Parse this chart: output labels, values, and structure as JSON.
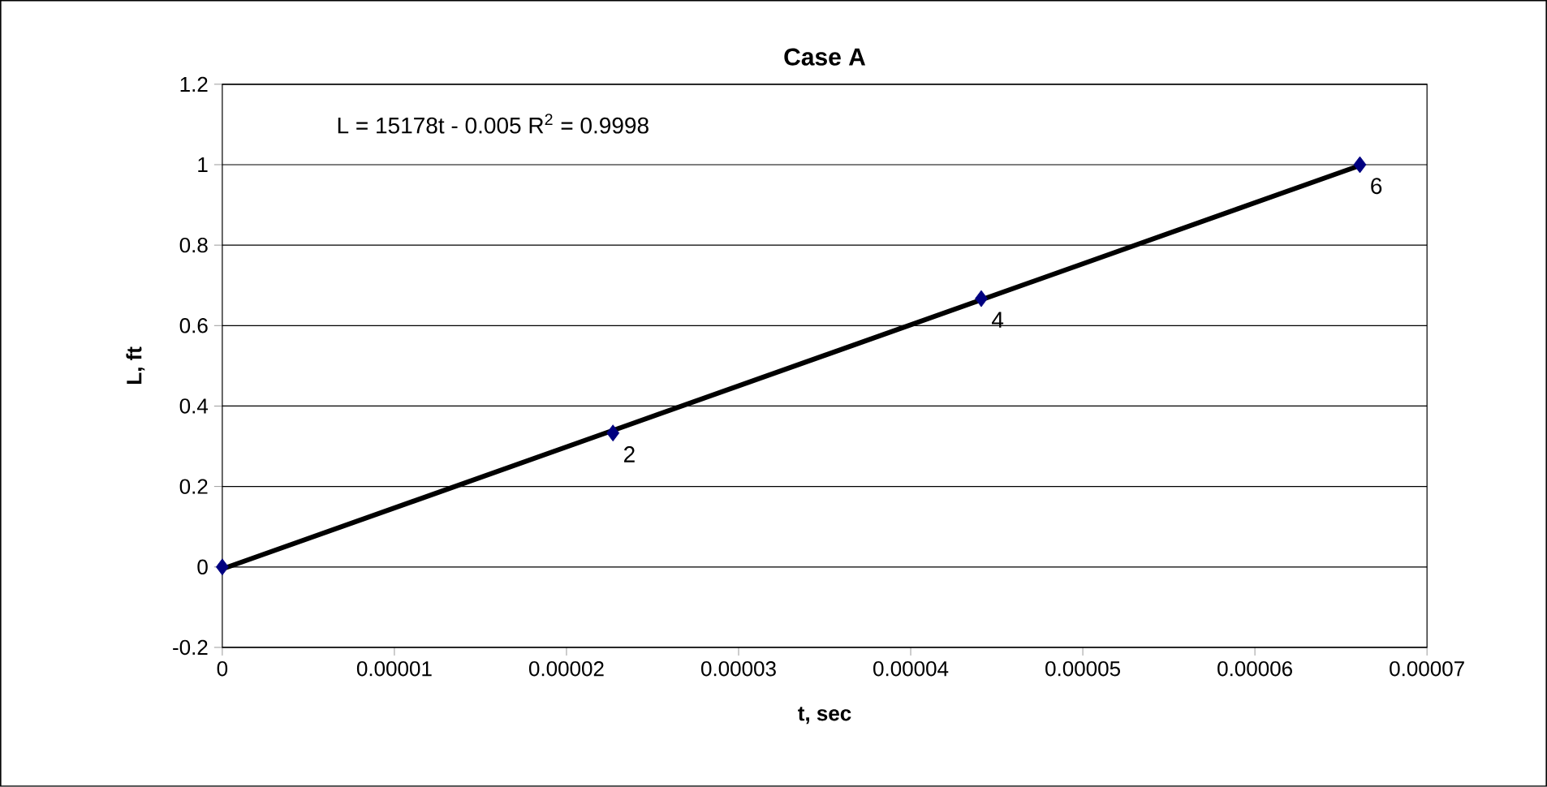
{
  "chart_data": {
    "type": "scatter",
    "title": "Case A",
    "xlabel": "t, sec",
    "ylabel": "L, ft",
    "xlim": [
      0,
      7e-05
    ],
    "xticks": [
      0,
      {
        "value": 1e-05,
        "label": "0.00001"
      },
      {
        "value": 2e-05,
        "label": "0.00002"
      },
      {
        "value": 3e-05,
        "label": "0.00003"
      },
      {
        "value": 4e-05,
        "label": "0.00004"
      },
      {
        "value": 5e-05,
        "label": "0.00005"
      },
      {
        "value": 6e-05,
        "label": "0.00006"
      },
      {
        "value": 7e-05,
        "label": "0.00007"
      }
    ],
    "ylim": [
      -0.2,
      1.2
    ],
    "yticks": [
      -0.2,
      0,
      0.2,
      0.4,
      0.6,
      0.8,
      1,
      1.2
    ],
    "grid": "y",
    "series": [
      {
        "marker": "diamond",
        "color": "#000080",
        "x": [
          0,
          2.27e-05,
          4.41e-05,
          6.61e-05
        ],
        "values": [
          0,
          0.333,
          0.667,
          1
        ]
      },
      {
        "type": "line",
        "marker": "none",
        "line_style": "solid",
        "color": "#000000",
        "x": [
          0,
          6.61e-05
        ],
        "values": [
          -0.005,
          0.998
        ]
      }
    ],
    "annotations": [
      "L = 15178t - 0.005 R$^{2}$ = 0.9998",
      {
        "text": "2",
        "x": 2.27e-05,
        "y": 0.333
      },
      {
        "text": "4",
        "x": 4.41e-05,
        "y": 0.667
      },
      {
        "text": "6",
        "x": 6.61e-05,
        "y": 1
      }
    ]
  }
}
